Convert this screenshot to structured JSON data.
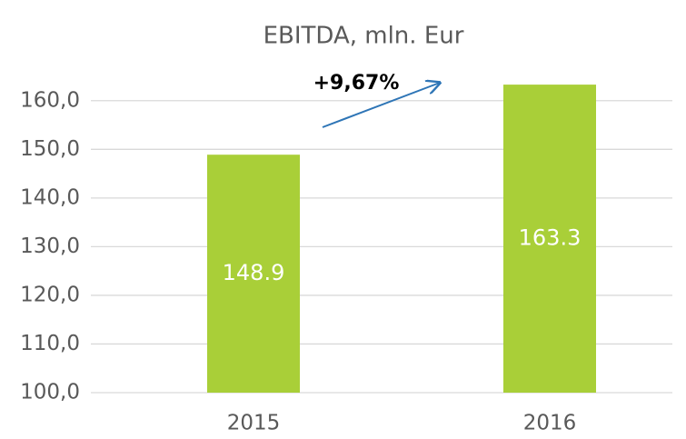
{
  "chart_data": {
    "type": "bar",
    "title": "EBITDA, mln. Eur",
    "categories": [
      "2015",
      "2016"
    ],
    "values": [
      148.9,
      163.3
    ],
    "color": "#a9cf38",
    "ylim": [
      100,
      165
    ],
    "yticks": [
      {
        "value": 100,
        "label": "100,0"
      },
      {
        "value": 110,
        "label": "110,0"
      },
      {
        "value": 120,
        "label": "120,0"
      },
      {
        "value": 130,
        "label": "130,0"
      },
      {
        "value": 140,
        "label": "140,0"
      },
      {
        "value": 150,
        "label": "150,0"
      },
      {
        "value": 160,
        "label": "160,0"
      }
    ],
    "grid": true,
    "annotation": "+9,67%"
  }
}
